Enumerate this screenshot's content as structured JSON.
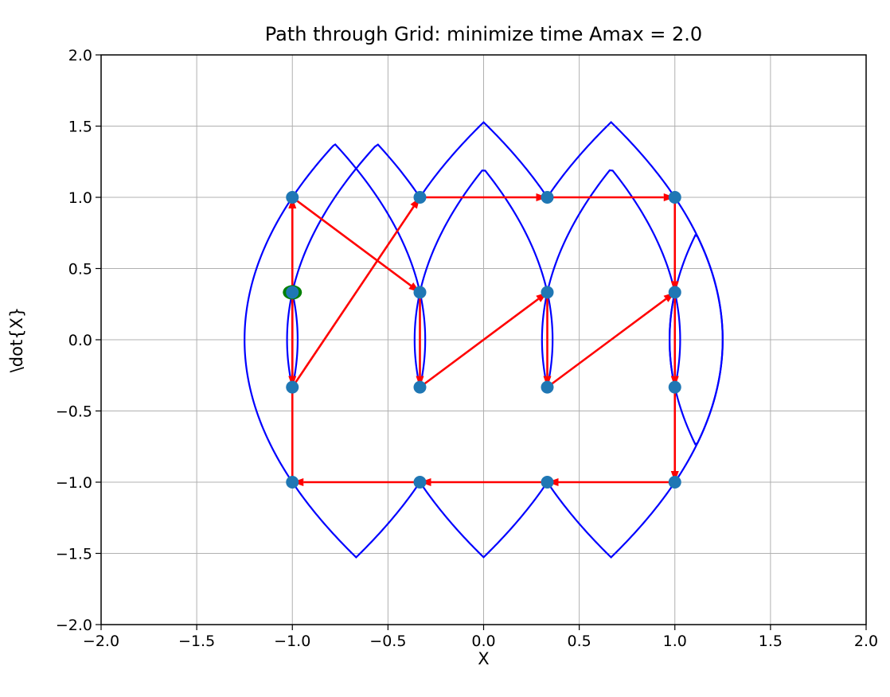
{
  "chart_data": {
    "type": "line",
    "title": "Path through Grid: minimize time  Amax = 2.0",
    "xlabel": "X",
    "ylabel": "\\dot{X}",
    "xlim": [
      -2.0,
      2.0
    ],
    "ylim": [
      -2.0,
      2.0
    ],
    "grid": true,
    "x_ticks": [
      "−2.0",
      "−1.5",
      "−1.0",
      "−0.5",
      "0.0",
      "0.5",
      "1.0",
      "1.5",
      "2.0"
    ],
    "y_ticks": [
      "−2.0",
      "−1.5",
      "−1.0",
      "−0.5",
      "0.0",
      "0.5",
      "1.0",
      "1.5",
      "2.0"
    ],
    "grid_points": {
      "color": "#1f77b4",
      "points": [
        [
          -1.0,
          -1.0
        ],
        [
          -0.333,
          -1.0
        ],
        [
          0.333,
          -1.0
        ],
        [
          1.0,
          -1.0
        ],
        [
          -1.0,
          -0.333
        ],
        [
          -0.333,
          -0.333
        ],
        [
          0.333,
          -0.333
        ],
        [
          1.0,
          -0.333
        ],
        [
          -1.0,
          0.333
        ],
        [
          -0.333,
          0.333
        ],
        [
          0.333,
          0.333
        ],
        [
          1.0,
          0.333
        ],
        [
          -1.0,
          1.0
        ],
        [
          -0.333,
          1.0
        ],
        [
          0.333,
          1.0
        ],
        [
          1.0,
          1.0
        ]
      ]
    },
    "start_point": {
      "color": "#008000",
      "point": [
        -1.0,
        0.333
      ]
    },
    "path_arrows": {
      "color": "#ff0000",
      "segments": [
        [
          [
            -1.0,
            0.333
          ],
          [
            -1.0,
            -0.333
          ]
        ],
        [
          [
            -1.0,
            -0.333
          ],
          [
            -0.333,
            1.0
          ]
        ],
        [
          [
            -0.333,
            1.0
          ],
          [
            0.333,
            1.0
          ]
        ],
        [
          [
            0.333,
            1.0
          ],
          [
            1.0,
            1.0
          ]
        ],
        [
          [
            1.0,
            1.0
          ],
          [
            1.0,
            0.333
          ]
        ],
        [
          [
            1.0,
            0.333
          ],
          [
            1.0,
            -0.333
          ]
        ],
        [
          [
            1.0,
            -0.333
          ],
          [
            1.0,
            -1.0
          ]
        ],
        [
          [
            1.0,
            -1.0
          ],
          [
            0.333,
            -1.0
          ]
        ],
        [
          [
            0.333,
            -1.0
          ],
          [
            -0.333,
            -1.0
          ]
        ],
        [
          [
            -0.333,
            -1.0
          ],
          [
            -1.0,
            -1.0
          ]
        ],
        [
          [
            -1.0,
            -1.0
          ],
          [
            -1.0,
            1.0
          ]
        ],
        [
          [
            -1.0,
            1.0
          ],
          [
            -0.333,
            0.333
          ]
        ],
        [
          [
            -0.333,
            0.333
          ],
          [
            -0.333,
            -0.333
          ]
        ],
        [
          [
            -0.333,
            -0.333
          ],
          [
            0.333,
            0.333
          ]
        ],
        [
          [
            0.333,
            0.333
          ],
          [
            0.333,
            -0.333
          ]
        ],
        [
          [
            0.333,
            -0.333
          ],
          [
            1.0,
            0.333
          ]
        ]
      ]
    },
    "trajectory": {
      "color": "#0000ff",
      "amax": 2.0
    }
  }
}
